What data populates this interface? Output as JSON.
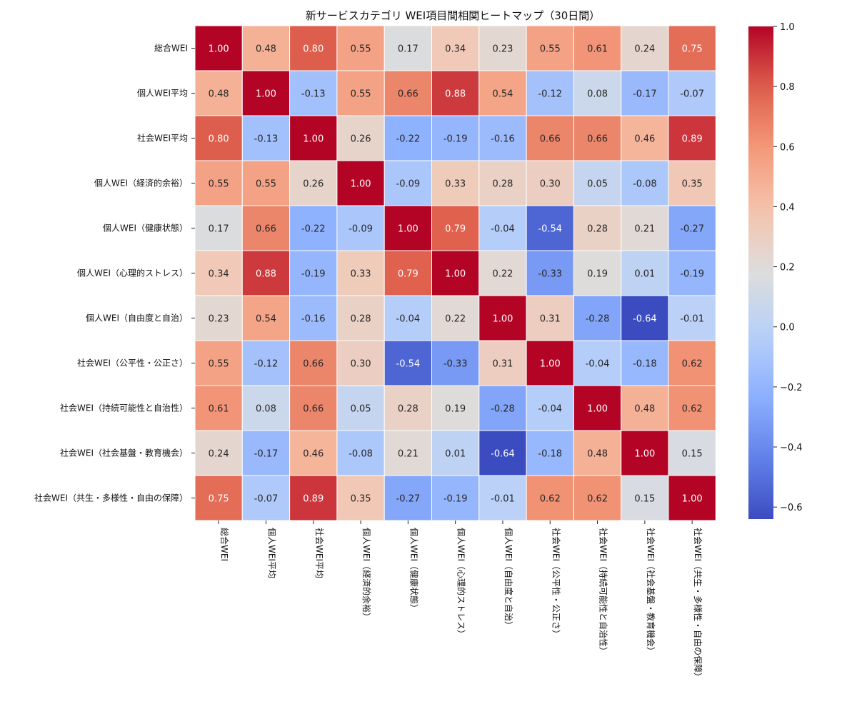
{
  "chart_data": {
    "type": "heatmap",
    "title": "新サービスカテゴリ WEI項目間相関ヒートマップ（30日間）",
    "row_labels": [
      "総合WEI",
      "個人WEI平均",
      "社会WEI平均",
      "個人WEI（経済的余裕）",
      "個人WEI（健康状態）",
      "個人WEI（心理的ストレス）",
      "個人WEI（自由度と自治）",
      "社会WEI（公平性・公正さ）",
      "社会WEI（持続可能性と自治性）",
      "社会WEI（社会基盤・教育機会）",
      "社会WEI（共生・多様性・自由の保障）"
    ],
    "col_labels": [
      "総合WEI",
      "個人WEI平均",
      "社会WEI平均",
      "個人WEI（経済的余裕）",
      "個人WEI（健康状態）",
      "個人WEI（心理的ストレス）",
      "個人WEI（自由度と自治）",
      "社会WEI（公平性・公正さ）",
      "社会WEI（持続可能性と自治性）",
      "社会WEI（社会基盤・教育機会）",
      "社会WEI（共生・多様性・自由の保障）"
    ],
    "values": [
      [
        1.0,
        0.48,
        0.8,
        0.55,
        0.17,
        0.34,
        0.23,
        0.55,
        0.61,
        0.24,
        0.75
      ],
      [
        0.48,
        1.0,
        -0.13,
        0.55,
        0.66,
        0.88,
        0.54,
        -0.12,
        0.08,
        -0.17,
        -0.07
      ],
      [
        0.8,
        -0.13,
        1.0,
        0.26,
        -0.22,
        -0.19,
        -0.16,
        0.66,
        0.66,
        0.46,
        0.89
      ],
      [
        0.55,
        0.55,
        0.26,
        1.0,
        -0.09,
        0.33,
        0.28,
        0.3,
        0.05,
        -0.08,
        0.35
      ],
      [
        0.17,
        0.66,
        -0.22,
        -0.09,
        1.0,
        0.79,
        -0.04,
        -0.54,
        0.28,
        0.21,
        -0.27
      ],
      [
        0.34,
        0.88,
        -0.19,
        0.33,
        0.79,
        1.0,
        0.22,
        -0.33,
        0.19,
        0.01,
        -0.19
      ],
      [
        0.23,
        0.54,
        -0.16,
        0.28,
        -0.04,
        0.22,
        1.0,
        0.31,
        -0.28,
        -0.64,
        -0.01
      ],
      [
        0.55,
        -0.12,
        0.66,
        0.3,
        -0.54,
        -0.33,
        0.31,
        1.0,
        -0.04,
        -0.18,
        0.62
      ],
      [
        0.61,
        0.08,
        0.66,
        0.05,
        0.28,
        0.19,
        -0.28,
        -0.04,
        1.0,
        0.48,
        0.62
      ],
      [
        0.24,
        -0.17,
        0.46,
        -0.08,
        0.21,
        0.01,
        -0.64,
        -0.18,
        0.48,
        1.0,
        0.15
      ],
      [
        0.75,
        -0.07,
        0.89,
        0.35,
        -0.27,
        -0.19,
        -0.01,
        0.62,
        0.62,
        0.15,
        1.0
      ]
    ],
    "colormap": "coolwarm",
    "color_range": [
      -0.64,
      1.0
    ],
    "colorbar_ticks": [
      "1.0",
      "0.8",
      "0.6",
      "0.4",
      "0.2",
      "0.0",
      "−0.2",
      "−0.4",
      "−0.6"
    ],
    "colorbar_tick_values": [
      1.0,
      0.8,
      0.6,
      0.4,
      0.2,
      0.0,
      -0.2,
      -0.4,
      -0.6
    ],
    "annotation_format": "0.00",
    "cell_border_color": "#ffffff"
  }
}
